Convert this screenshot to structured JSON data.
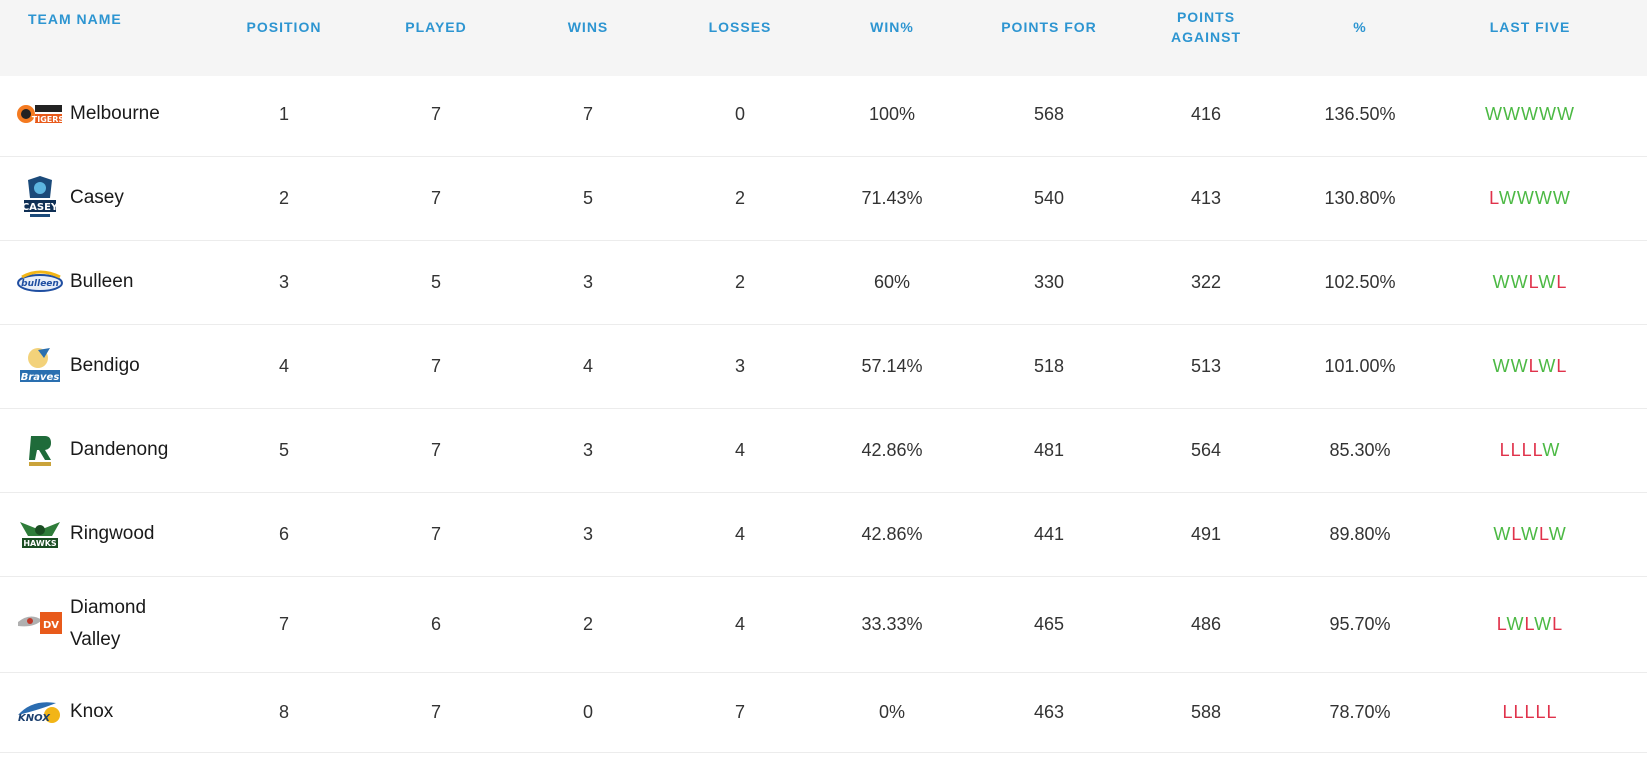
{
  "headers": {
    "team_name": "TEAM NAME",
    "position": "POSITION",
    "played": "PLAYED",
    "wins": "WINS",
    "losses": "LOSSES",
    "win_pct": "WIN%",
    "points_for": "POINTS FOR",
    "points_against": "POINTS AGAINST",
    "percentage": "%",
    "last_five": "LAST FIVE"
  },
  "colors": {
    "header_text": "#2d95d1",
    "header_bg": "#f5f5f5",
    "win": "#4cb944",
    "loss": "#e0324b"
  },
  "rows": [
    {
      "team": "Melbourne",
      "logo_icon": "melbourne-tigers-logo-icon",
      "position": "1",
      "played": "7",
      "wins": "7",
      "losses": "0",
      "win_pct": "100%",
      "points_for": "568",
      "points_against": "416",
      "percentage": "136.50%",
      "last_five": "WWWWW"
    },
    {
      "team": "Casey",
      "logo_icon": "casey-cavaliers-logo-icon",
      "position": "2",
      "played": "7",
      "wins": "5",
      "losses": "2",
      "win_pct": "71.43%",
      "points_for": "540",
      "points_against": "413",
      "percentage": "130.80%",
      "last_five": "LWWWW"
    },
    {
      "team": "Bulleen",
      "logo_icon": "bulleen-boomers-logo-icon",
      "position": "3",
      "played": "5",
      "wins": "3",
      "losses": "2",
      "win_pct": "60%",
      "points_for": "330",
      "points_against": "322",
      "percentage": "102.50%",
      "last_five": "WWLWL"
    },
    {
      "team": "Bendigo",
      "logo_icon": "bendigo-braves-logo-icon",
      "position": "4",
      "played": "7",
      "wins": "4",
      "losses": "3",
      "win_pct": "57.14%",
      "points_for": "518",
      "points_against": "513",
      "percentage": "101.00%",
      "last_five": "WWLWL"
    },
    {
      "team": "Dandenong",
      "logo_icon": "dandenong-rangers-logo-icon",
      "position": "5",
      "played": "7",
      "wins": "3",
      "losses": "4",
      "win_pct": "42.86%",
      "points_for": "481",
      "points_against": "564",
      "percentage": "85.30%",
      "last_five": "LLLLW"
    },
    {
      "team": "Ringwood",
      "logo_icon": "ringwood-hawks-logo-icon",
      "position": "6",
      "played": "7",
      "wins": "3",
      "losses": "4",
      "win_pct": "42.86%",
      "points_for": "441",
      "points_against": "491",
      "percentage": "89.80%",
      "last_five": "WLWLW"
    },
    {
      "team": "Diamond Valley",
      "logo_icon": "diamond-valley-eagles-logo-icon",
      "position": "7",
      "played": "6",
      "wins": "2",
      "losses": "4",
      "win_pct": "33.33%",
      "points_for": "465",
      "points_against": "486",
      "percentage": "95.70%",
      "last_five": "LWLWL"
    },
    {
      "team": "Knox",
      "logo_icon": "knox-raiders-logo-icon",
      "position": "8",
      "played": "7",
      "wins": "0",
      "losses": "7",
      "win_pct": "0%",
      "points_for": "463",
      "points_against": "588",
      "percentage": "78.70%",
      "last_five": "LLLLL"
    }
  ]
}
